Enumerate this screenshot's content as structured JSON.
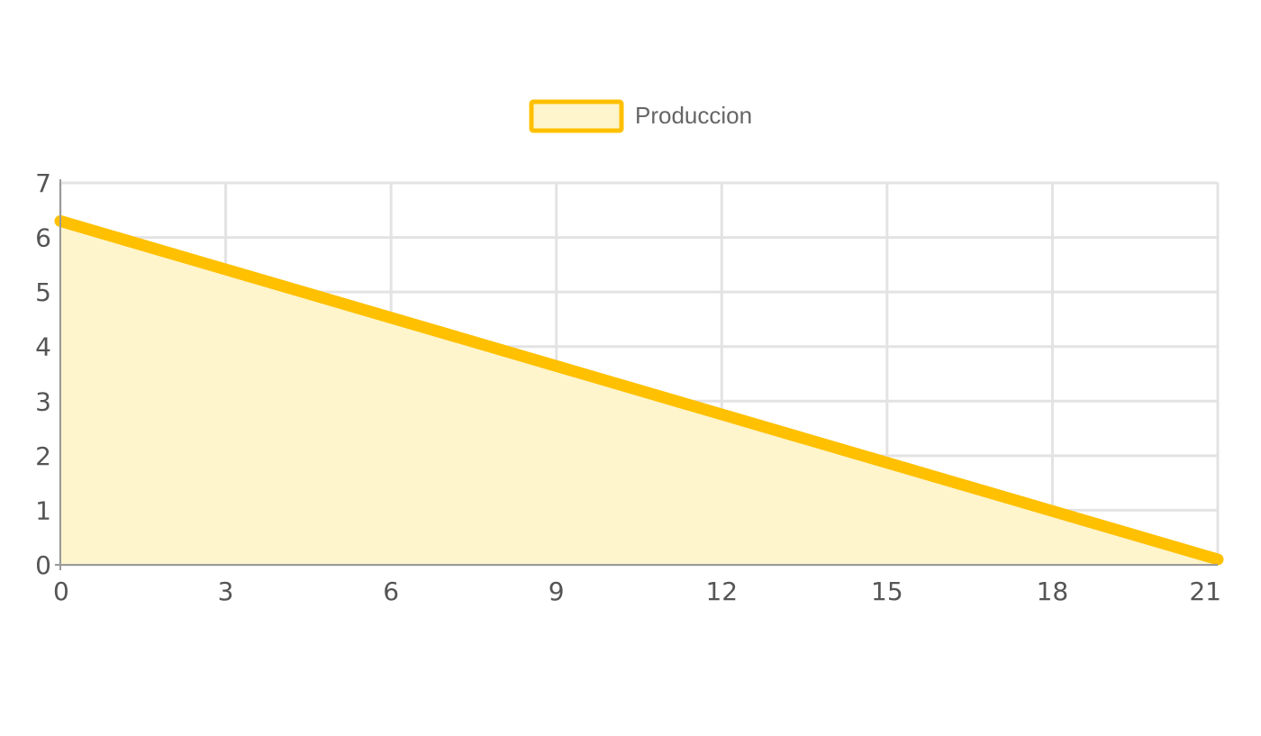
{
  "chart_data": {
    "type": "area",
    "series": [
      {
        "name": "Produccion",
        "x": [
          0,
          21
        ],
        "y": [
          6.3,
          0.1
        ],
        "line_color": "#ffc000",
        "fill_color": "#fff5cc"
      }
    ],
    "x_ticks": [
      "0",
      "3",
      "6",
      "9",
      "12",
      "15",
      "18",
      "21"
    ],
    "y_ticks": [
      "0",
      "1",
      "2",
      "3",
      "4",
      "5",
      "6",
      "7"
    ],
    "xlim": [
      0,
      21
    ],
    "ylim": [
      0,
      7
    ],
    "grid": true,
    "legend_position": "top-center",
    "title": "",
    "xlabel": "",
    "ylabel": ""
  }
}
